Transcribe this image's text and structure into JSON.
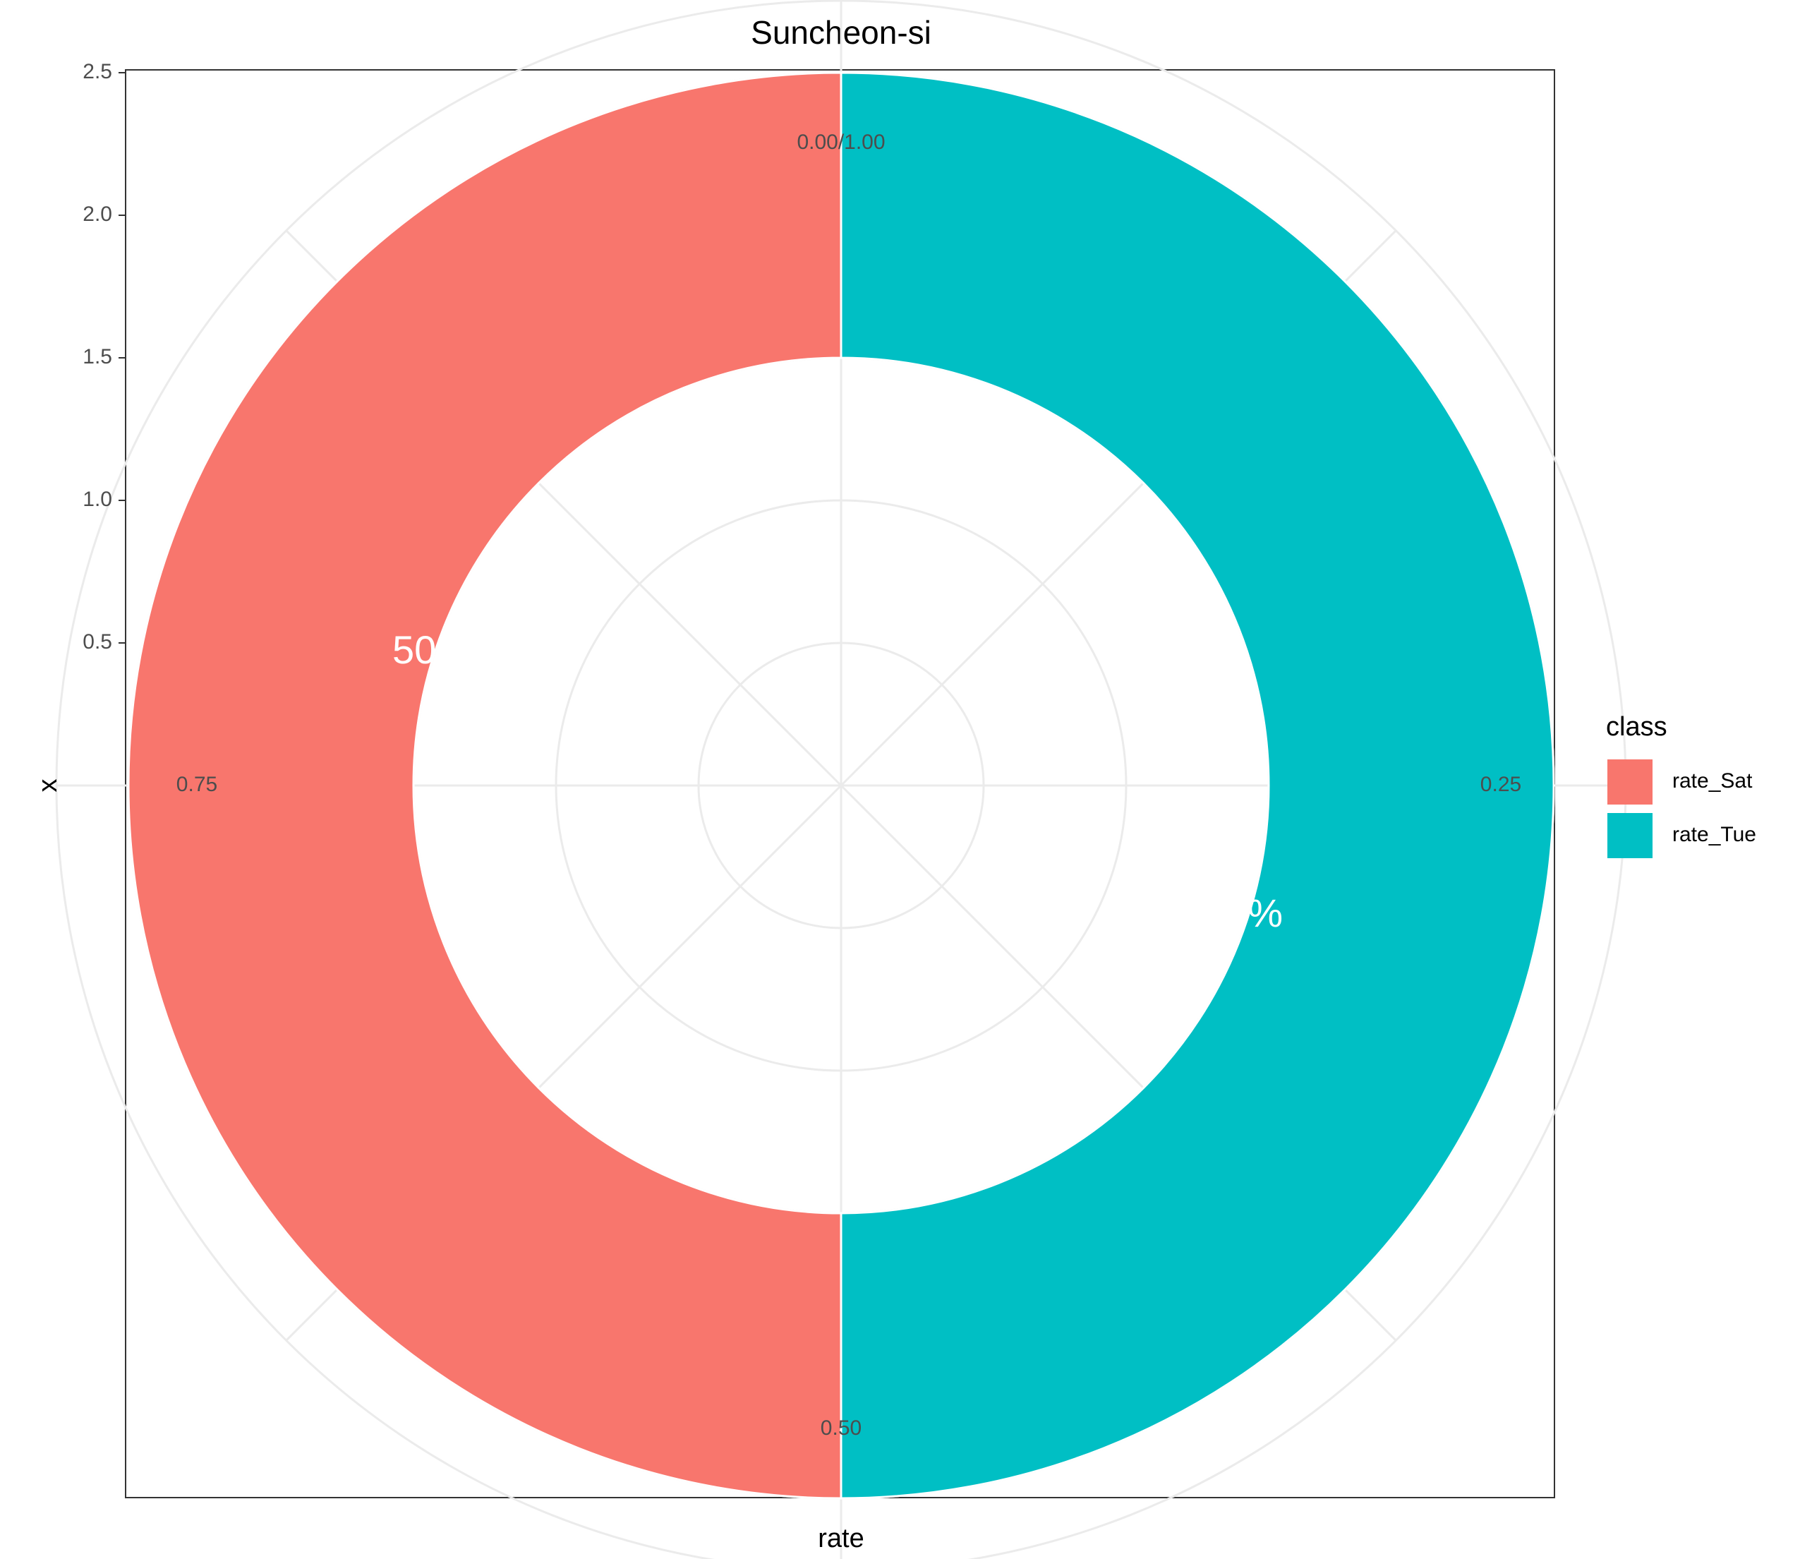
{
  "chart_data": {
    "type": "pie",
    "subtype": "donut (polar coordinates)",
    "title": "Suncheon-si",
    "xlabel": "rate",
    "ylabel": "x",
    "categories": [
      "rate_Sat",
      "rate_Tue"
    ],
    "values": [
      0.5,
      0.5
    ],
    "data_labels": [
      "50%",
      "50%"
    ],
    "colors": [
      "#F8766D",
      "#00BFC4"
    ],
    "theta_ticks": [
      "0.00/1.00",
      "0.25",
      "0.50",
      "0.75"
    ],
    "r_ticks": [
      "0.5",
      "1.0",
      "1.5",
      "2.0",
      "2.5"
    ],
    "ring_x_range": [
      1.5,
      2.5
    ],
    "legend": {
      "title": "class",
      "position": "right",
      "items": [
        {
          "label": "rate_Sat",
          "color": "#F8766D"
        },
        {
          "label": "rate_Tue",
          "color": "#00BFC4"
        }
      ]
    },
    "grid": true
  }
}
